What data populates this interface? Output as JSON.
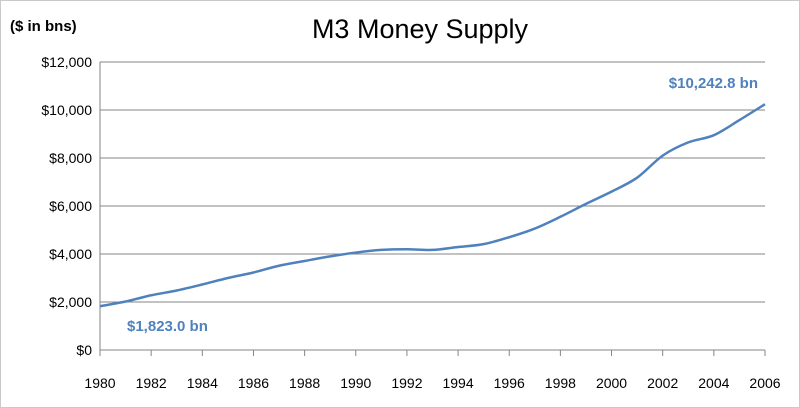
{
  "chart_data": {
    "type": "line",
    "title": "M3 Money Supply",
    "unit_label": "($ in bns)",
    "xlabel": "",
    "ylabel": "",
    "x_ticks": [
      "1980",
      "1982",
      "1984",
      "1986",
      "1988",
      "1990",
      "1992",
      "1994",
      "1996",
      "1998",
      "2000",
      "2002",
      "2004",
      "2006"
    ],
    "y_ticks": [
      "$0",
      "$2,000",
      "$4,000",
      "$6,000",
      "$8,000",
      "$10,000",
      "$12,000"
    ],
    "xlim": [
      1980,
      2006
    ],
    "ylim": [
      0,
      12000
    ],
    "grid": "horizontal",
    "line_color": "#4f81bd",
    "series": [
      {
        "x": [
          1980,
          1981,
          1982,
          1983,
          1984,
          1985,
          1986,
          1987,
          1988,
          1989,
          1990,
          1991,
          1992,
          1993,
          1994,
          1995,
          1996,
          1997,
          1998,
          1999,
          2000,
          2001,
          2002,
          2003,
          2004,
          2005,
          2006
        ],
        "values": [
          1823,
          2020,
          2280,
          2480,
          2730,
          3000,
          3230,
          3510,
          3710,
          3900,
          4060,
          4170,
          4200,
          4170,
          4290,
          4410,
          4700,
          5060,
          5550,
          6090,
          6600,
          7180,
          8100,
          8650,
          8950,
          9580,
          10242.8
        ]
      }
    ],
    "annotations": [
      {
        "text": "$1,823.0 bn",
        "x": 1980,
        "y": 1823
      },
      {
        "text": "$10,242.8 bn",
        "x": 2006,
        "y": 10242.8
      }
    ]
  }
}
